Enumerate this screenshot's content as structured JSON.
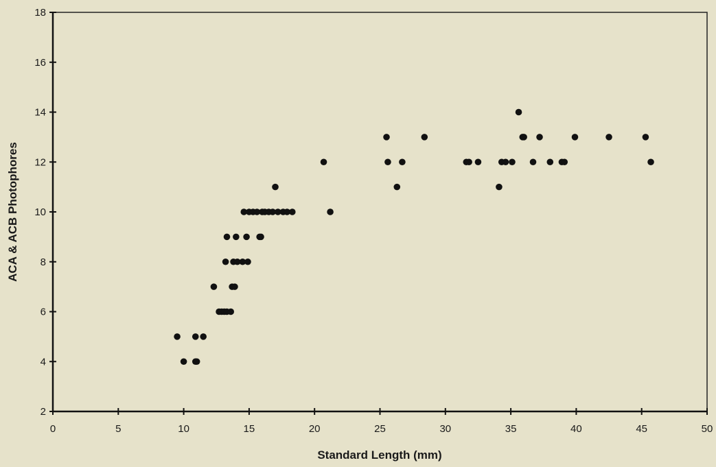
{
  "chart_data": {
    "type": "scatter",
    "title": "",
    "xlabel": "Standard Length (mm)",
    "ylabel": "ACA & ACB Photophores",
    "xlim": [
      0,
      50
    ],
    "ylim": [
      2,
      18
    ],
    "xticks": [
      0,
      5,
      10,
      15,
      20,
      25,
      30,
      35,
      40,
      45,
      50
    ],
    "yticks": [
      2,
      4,
      6,
      8,
      10,
      12,
      14,
      16,
      18
    ],
    "grid": false,
    "legend": "none",
    "marker_color": "#111111",
    "points": [
      {
        "x": 9.5,
        "y": 5
      },
      {
        "x": 10.0,
        "y": 4
      },
      {
        "x": 10.9,
        "y": 4
      },
      {
        "x": 11.0,
        "y": 4
      },
      {
        "x": 10.9,
        "y": 5
      },
      {
        "x": 11.5,
        "y": 5
      },
      {
        "x": 12.3,
        "y": 7
      },
      {
        "x": 12.7,
        "y": 6
      },
      {
        "x": 12.9,
        "y": 6
      },
      {
        "x": 13.1,
        "y": 6
      },
      {
        "x": 13.3,
        "y": 6
      },
      {
        "x": 13.6,
        "y": 6
      },
      {
        "x": 13.2,
        "y": 8
      },
      {
        "x": 13.3,
        "y": 9
      },
      {
        "x": 13.7,
        "y": 7
      },
      {
        "x": 13.9,
        "y": 7
      },
      {
        "x": 13.8,
        "y": 8
      },
      {
        "x": 14.1,
        "y": 8
      },
      {
        "x": 14.5,
        "y": 8
      },
      {
        "x": 14.9,
        "y": 8
      },
      {
        "x": 14.0,
        "y": 9
      },
      {
        "x": 14.8,
        "y": 9
      },
      {
        "x": 14.6,
        "y": 10
      },
      {
        "x": 15.0,
        "y": 10
      },
      {
        "x": 15.3,
        "y": 10
      },
      {
        "x": 15.6,
        "y": 10
      },
      {
        "x": 15.8,
        "y": 9
      },
      {
        "x": 15.9,
        "y": 9
      },
      {
        "x": 16.0,
        "y": 10
      },
      {
        "x": 16.2,
        "y": 10
      },
      {
        "x": 16.5,
        "y": 10
      },
      {
        "x": 16.8,
        "y": 10
      },
      {
        "x": 17.0,
        "y": 11
      },
      {
        "x": 17.2,
        "y": 10
      },
      {
        "x": 17.6,
        "y": 10
      },
      {
        "x": 17.9,
        "y": 10
      },
      {
        "x": 18.3,
        "y": 10
      },
      {
        "x": 20.7,
        "y": 12
      },
      {
        "x": 21.2,
        "y": 10
      },
      {
        "x": 25.5,
        "y": 13
      },
      {
        "x": 25.6,
        "y": 12
      },
      {
        "x": 26.3,
        "y": 11
      },
      {
        "x": 26.7,
        "y": 12
      },
      {
        "x": 28.4,
        "y": 13
      },
      {
        "x": 31.6,
        "y": 12
      },
      {
        "x": 31.8,
        "y": 12
      },
      {
        "x": 32.5,
        "y": 12
      },
      {
        "x": 34.1,
        "y": 11
      },
      {
        "x": 34.3,
        "y": 12
      },
      {
        "x": 34.6,
        "y": 12
      },
      {
        "x": 35.1,
        "y": 12
      },
      {
        "x": 35.6,
        "y": 14
      },
      {
        "x": 35.9,
        "y": 13
      },
      {
        "x": 36.0,
        "y": 13
      },
      {
        "x": 36.7,
        "y": 12
      },
      {
        "x": 37.2,
        "y": 13
      },
      {
        "x": 38.0,
        "y": 12
      },
      {
        "x": 38.9,
        "y": 12
      },
      {
        "x": 39.1,
        "y": 12
      },
      {
        "x": 39.9,
        "y": 13
      },
      {
        "x": 42.5,
        "y": 13
      },
      {
        "x": 45.3,
        "y": 13
      },
      {
        "x": 45.7,
        "y": 12
      }
    ]
  }
}
